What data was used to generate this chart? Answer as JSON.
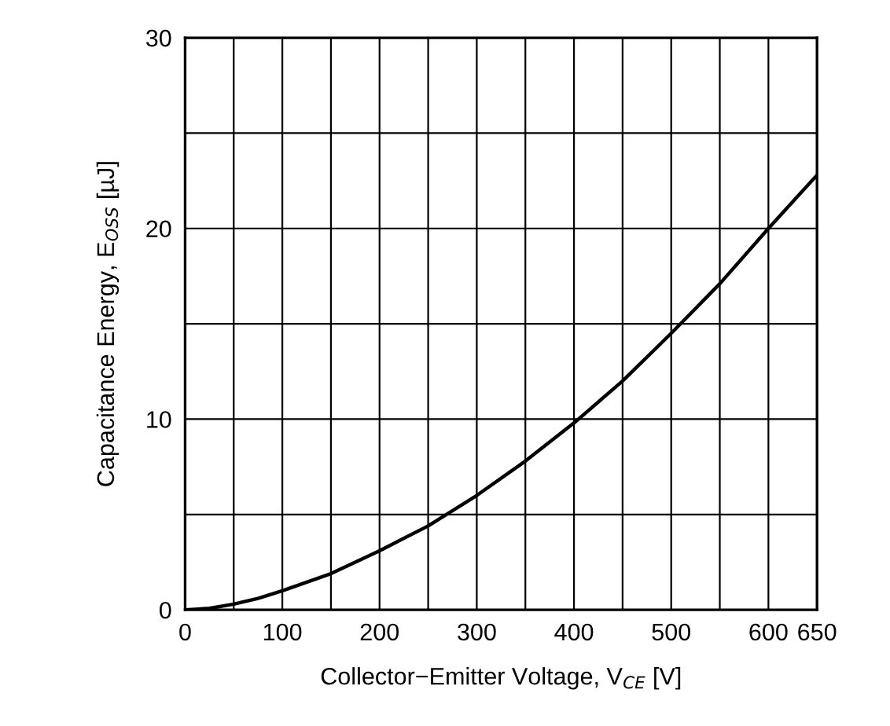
{
  "chart_data": {
    "type": "line",
    "xlabel": "Collector−Emitter Voltage, V$_{CE}$ [V]",
    "ylabel": "Capacitance Energy, E$_{OSS}$ [µJ]",
    "x": [
      0,
      25,
      50,
      75,
      100,
      150,
      200,
      250,
      300,
      350,
      400,
      450,
      500,
      550,
      600,
      650
    ],
    "series": [
      {
        "color": "#000000",
        "values": [
          0,
          0.08,
          0.3,
          0.6,
          1.0,
          1.9,
          3.1,
          4.4,
          6.0,
          7.8,
          9.8,
          12.0,
          14.5,
          17.1,
          20.0,
          22.8
        ]
      }
    ],
    "xlim": [
      0,
      650
    ],
    "ylim": [
      0,
      30
    ],
    "xticks": [
      0,
      {
        "value": 50,
        "label": null
      },
      100,
      {
        "value": 150,
        "label": null
      },
      200,
      {
        "value": 250,
        "label": null
      },
      300,
      {
        "value": 350,
        "label": null
      },
      400,
      {
        "value": 450,
        "label": null
      },
      500,
      {
        "value": 550,
        "label": null
      },
      600,
      650
    ],
    "yticks": [
      0,
      {
        "value": 5,
        "label": null
      },
      10,
      {
        "value": 15,
        "label": null
      },
      20,
      {
        "value": 25,
        "label": null
      },
      30
    ],
    "grid": true,
    "marker": "none",
    "line_style": "solid"
  }
}
